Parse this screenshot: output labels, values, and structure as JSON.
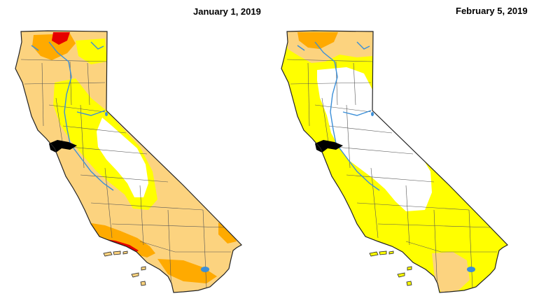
{
  "titles": {
    "left": "January 1, 2019",
    "right": "February 5, 2019"
  },
  "colors": {
    "none": "#ffffff",
    "abnormally_dry": "#ffff00",
    "moderate_drought": "#fcd37f",
    "severe_drought": "#ffaa00",
    "extreme_drought": "#e60000",
    "water": "#3b8fd8",
    "bay": "#000000",
    "county_lines": "#555555"
  },
  "maps": [
    {
      "date": "January 1, 2019",
      "dominant_category": "moderate_drought",
      "categories_present": [
        "none",
        "abnormally_dry",
        "moderate_drought",
        "severe_drought",
        "extreme_drought"
      ]
    },
    {
      "date": "February 5, 2019",
      "dominant_category": "abnormally_dry",
      "categories_present": [
        "none",
        "abnormally_dry",
        "moderate_drought",
        "severe_drought"
      ]
    }
  ]
}
